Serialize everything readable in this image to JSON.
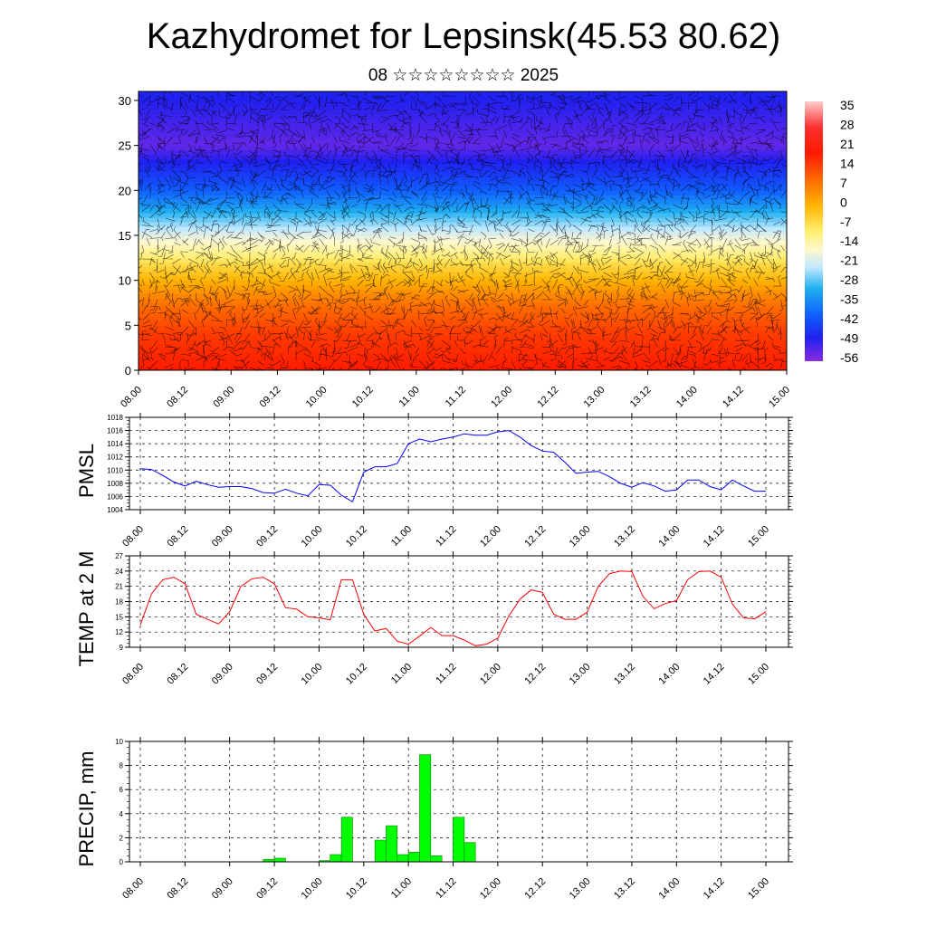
{
  "title": "Kazhydromet for Lepsinsk(45.53 80.62)",
  "subtitle": "08 ☆☆☆☆☆☆☆☆ 2025",
  "chart_data": [
    {
      "type": "heatmap",
      "variable": "temperature cross-section with wind barbs",
      "x_ticks": [
        "08.00",
        "08.12",
        "09.00",
        "09.12",
        "10.00",
        "10.12",
        "11.00",
        "11.12",
        "12.00",
        "12.12",
        "13.00",
        "13.12",
        "14.00",
        "14.12",
        "15.00"
      ],
      "y_ticks": [
        "0",
        "5",
        "10",
        "15",
        "20",
        "25",
        "30"
      ],
      "ylim": [
        0,
        31
      ],
      "colorbar_labels": [
        "35",
        "28",
        "21",
        "14",
        "7",
        "0",
        "-7",
        "-14",
        "-21",
        "-28",
        "-35",
        "-42",
        "-49",
        "-56"
      ],
      "level_temperature": [
        {
          "level": 0,
          "value": 24
        },
        {
          "level": 4,
          "value": 20
        },
        {
          "level": 8,
          "value": 12
        },
        {
          "level": 12,
          "value": 2
        },
        {
          "level": 15,
          "value": -10
        },
        {
          "level": 18,
          "value": -26
        },
        {
          "level": 21,
          "value": -40
        },
        {
          "level": 25,
          "value": -56
        },
        {
          "level": 28,
          "value": -52
        },
        {
          "level": 31,
          "value": -48
        }
      ]
    },
    {
      "type": "line",
      "ylabel": "PMSL",
      "ylim": [
        1004,
        1018
      ],
      "y_ticks": [
        "1004",
        "1006",
        "1008",
        "1010",
        "1012",
        "1014",
        "1016",
        "1018"
      ],
      "x_ticks": [
        "08.00",
        "08.12",
        "09.00",
        "09.12",
        "10.00",
        "10.12",
        "11.00",
        "11.12",
        "12.00",
        "12.12",
        "13.00",
        "13.12",
        "14.00",
        "14.12",
        "15.00"
      ],
      "color": "#0000ff",
      "values": [
        1010.2,
        1010.1,
        1009.2,
        1008.2,
        1007.6,
        1008.3,
        1007.8,
        1007.4,
        1007.5,
        1007.5,
        1007.2,
        1006.6,
        1006.5,
        1007.1,
        1006.5,
        1006.1,
        1007.8,
        1007.7,
        1006.2,
        1005.2,
        1009.7,
        1010.5,
        1010.5,
        1011.0,
        1014.0,
        1014.7,
        1014.3,
        1014.7,
        1015.0,
        1015.5,
        1015.3,
        1015.3,
        1015.8,
        1016.0,
        1015.0,
        1013.7,
        1012.9,
        1012.7,
        1011.2,
        1009.5,
        1009.7,
        1009.8,
        1009.0,
        1008.0,
        1007.4,
        1008.1,
        1007.6,
        1006.8,
        1007.0,
        1008.5,
        1008.5,
        1007.5,
        1007.0,
        1008.5,
        1007.6,
        1006.8,
        1006.8
      ]
    },
    {
      "type": "line",
      "ylabel": "TEMP at 2 M",
      "ylim": [
        9,
        27
      ],
      "y_ticks": [
        "9",
        "12",
        "15",
        "18",
        "21",
        "24",
        "27"
      ],
      "x_ticks": [
        "08.00",
        "08.12",
        "09.00",
        "09.12",
        "10.00",
        "10.12",
        "11.00",
        "11.12",
        "12.00",
        "12.12",
        "13.00",
        "13.12",
        "14.00",
        "14.12",
        "15.00"
      ],
      "color": "#ff0000",
      "values": [
        13.4,
        19.5,
        22.3,
        22.8,
        21.5,
        15.5,
        14.5,
        13.6,
        16.0,
        21.0,
        22.5,
        22.8,
        21.5,
        16.8,
        16.5,
        15.0,
        14.8,
        14.4,
        22.3,
        22.3,
        15.5,
        12.2,
        12.7,
        10.2,
        9.6,
        11.2,
        12.9,
        11.3,
        11.3,
        10.4,
        9.3,
        9.6,
        10.8,
        15.2,
        18.5,
        20.3,
        19.8,
        15.5,
        14.5,
        14.5,
        15.9,
        21.0,
        23.5,
        24.0,
        23.9,
        19.0,
        16.6,
        17.6,
        18.2,
        22.3,
        23.9,
        24.0,
        22.8,
        17.5,
        14.8,
        14.6,
        16.0
      ]
    },
    {
      "type": "bar",
      "ylabel": "PRECIP, mm",
      "ylim": [
        0,
        10
      ],
      "y_ticks": [
        "0",
        "2",
        "4",
        "6",
        "8",
        "10"
      ],
      "x_ticks": [
        "08.00",
        "08.12",
        "09.00",
        "09.12",
        "10.00",
        "10.12",
        "11.00",
        "11.12",
        "12.00",
        "12.12",
        "13.00",
        "13.12",
        "14.00",
        "14.12",
        "15.00"
      ],
      "color": "#00ff00",
      "values": [
        0,
        0,
        0,
        0,
        0,
        0,
        0,
        0,
        0,
        0,
        0,
        0.2,
        0.3,
        0,
        0,
        0,
        0.1,
        0.6,
        3.7,
        0,
        0,
        1.8,
        3.0,
        0.6,
        0.8,
        8.9,
        0.5,
        0,
        3.7,
        1.6,
        0,
        0,
        0,
        0,
        0,
        0,
        0,
        0,
        0,
        0,
        0,
        0,
        0,
        0,
        0,
        0,
        0,
        0,
        0,
        0,
        0,
        0,
        0,
        0,
        0,
        0,
        0
      ]
    }
  ]
}
